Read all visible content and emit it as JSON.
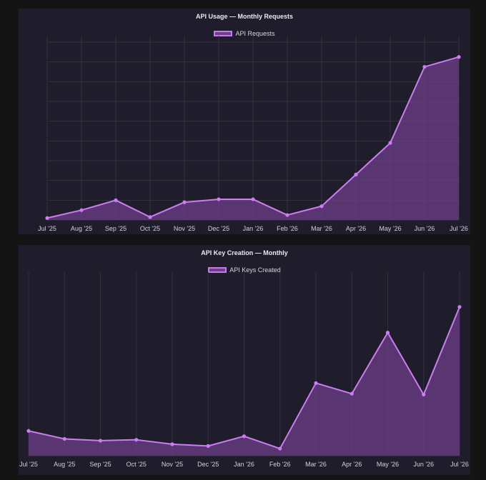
{
  "chart_data": [
    {
      "type": "area",
      "title": "API Usage — Monthly Requests",
      "xlabel": "",
      "ylabel": "",
      "categories": [
        "Jul '25",
        "Aug '25",
        "Sep '25",
        "Oct '25",
        "Nov '25",
        "Dec '25",
        "Jan '26",
        "Feb '26",
        "Mar '26",
        "Apr '26",
        "May '26",
        "Jun '26",
        "Jul '26"
      ],
      "series": [
        {
          "name": "API Requests",
          "values": [
            1,
            5,
            10,
            1.5,
            9,
            10.5,
            10.5,
            2.5,
            7,
            23,
            39,
            77.5,
            82.5
          ]
        }
      ],
      "ylim": [
        0,
        90
      ],
      "grid": true,
      "legend": "top",
      "colors": {
        "line": "#cc7df0",
        "fill": "#6e3f8a",
        "grid": "#34313f",
        "tick": "#d0d0d8"
      }
    },
    {
      "type": "area",
      "title": "API Key Creation — Monthly",
      "xlabel": "",
      "ylabel": "",
      "categories": [
        "Jul '25",
        "Aug '25",
        "Sep '25",
        "Oct '25",
        "Nov '25",
        "Dec '25",
        "Jan '26",
        "Feb '26",
        "Mar '26",
        "Apr '26",
        "May '26",
        "Jun '26",
        "Jul '26"
      ],
      "series": [
        {
          "name": "API Keys Created",
          "values": [
            14,
            9.5,
            8.5,
            9,
            6.5,
            5.5,
            11,
            4,
            41,
            35,
            69.5,
            34.5,
            84
          ]
        }
      ],
      "ylim": [
        0,
        100
      ],
      "grid": true,
      "legend": "top",
      "colors": {
        "line": "#cc7df0",
        "fill": "#6e3f8a",
        "grid": "#34313f",
        "tick": "#d0d0d8"
      }
    }
  ]
}
